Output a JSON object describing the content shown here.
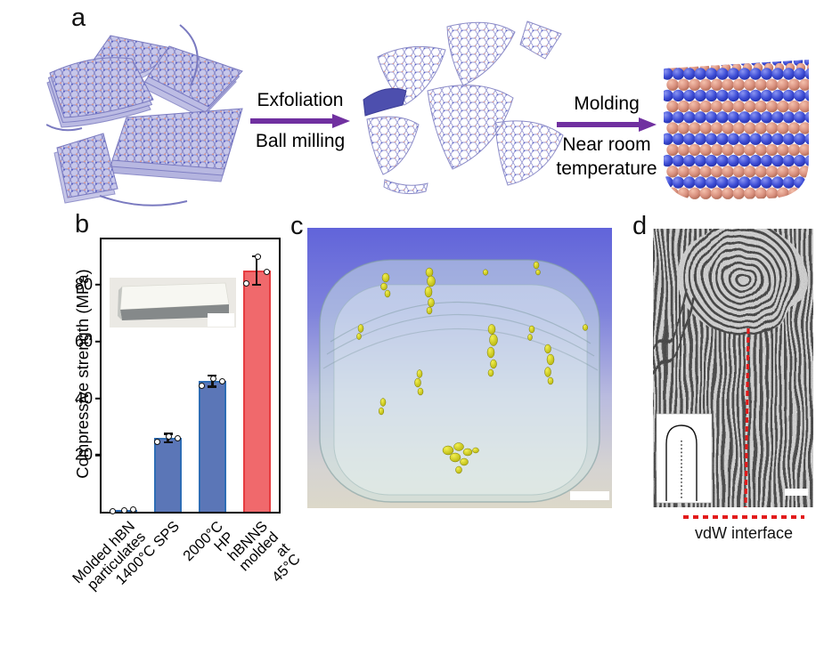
{
  "panel_a": {
    "label": "a",
    "step1": {
      "title": "Exfoliation",
      "subtitle": "Ball milling"
    },
    "step2": {
      "title": "Molding",
      "subtitle": "Near room\ntemperature"
    }
  },
  "panel_b": {
    "label": "b"
  },
  "panel_c": {
    "label": "c"
  },
  "panel_d": {
    "label": "d",
    "caption": "vdW interface"
  },
  "chart_data": {
    "type": "bar",
    "title": "",
    "xlabel": "",
    "ylabel": "Compressive strength (MPa)",
    "categories": [
      "Molded hBN\nparticulates",
      "1400°C SPS",
      "2000°C HP",
      "hBNNS molded\nat 45°C"
    ],
    "values": [
      0.5,
      26,
      46,
      85
    ],
    "errors": [
      0,
      1.5,
      2,
      5
    ],
    "points": [
      [
        0.3,
        0.5,
        0.7
      ],
      [
        24.5,
        26.5,
        26
      ],
      [
        44.5,
        47,
        46
      ],
      [
        80.5,
        90,
        84.5
      ]
    ],
    "bar_colors": [
      "#5b76b7",
      "#5b76b7",
      "#5b76b7",
      "#f0696c"
    ],
    "bar_edge_colors": [
      "#2e6db5",
      "#2e6db5",
      "#2e6db5",
      "#e63c40"
    ],
    "yticks": [
      20,
      40,
      60,
      80
    ],
    "ylim": [
      0,
      96
    ],
    "grid": false,
    "legend": null
  },
  "colors": {
    "process_arrow": "#7030a0",
    "vdw_interface_line": "#e31b1b",
    "sphere_blue": "#3e4ed6",
    "sphere_salmon": "#d9917f"
  }
}
